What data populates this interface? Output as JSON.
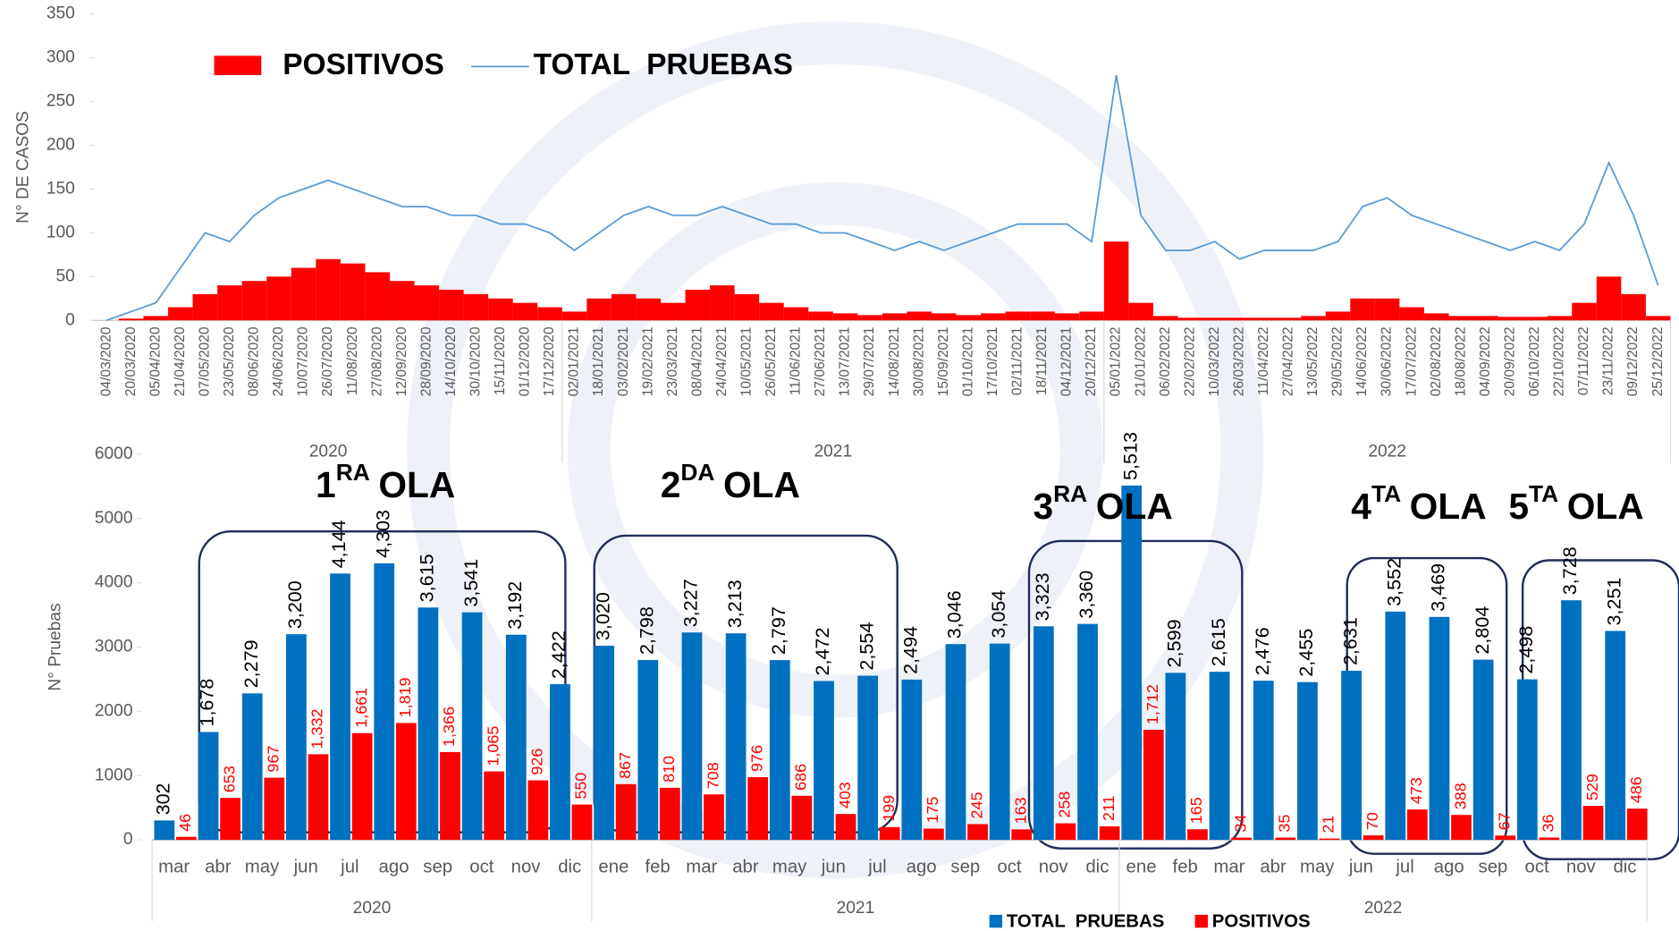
{
  "chart_data": [
    {
      "type": "daily",
      "ylabel": "N° DE CASOS",
      "ylim": [
        0,
        350
      ],
      "yticks": [
        0,
        50,
        100,
        150,
        200,
        250,
        300,
        350
      ],
      "x": [
        "04/03/2020",
        "20/03/2020",
        "05/04/2020",
        "21/04/2020",
        "07/05/2020",
        "23/05/2020",
        "08/06/2020",
        "24/06/2020",
        "10/07/2020",
        "26/07/2020",
        "11/08/2020",
        "27/08/2020",
        "12/09/2020",
        "28/09/2020",
        "14/10/2020",
        "30/10/2020",
        "15/11/2020",
        "01/12/2020",
        "17/12/2020",
        "02/01/2021",
        "18/01/2021",
        "03/02/2021",
        "19/02/2021",
        "23/03/2021",
        "08/04/2021",
        "24/04/2021",
        "10/05/2021",
        "26/05/2021",
        "11/06/2021",
        "27/06/2021",
        "13/07/2021",
        "29/07/2021",
        "14/08/2021",
        "30/08/2021",
        "15/09/2021",
        "01/10/2021",
        "17/10/2021",
        "02/11/2021",
        "18/11/2021",
        "04/12/2021",
        "20/12/2021",
        "05/01/2022",
        "21/01/2022",
        "06/02/2022",
        "22/02/2022",
        "10/03/2022",
        "26/03/2022",
        "11/04/2022",
        "27/04/2022",
        "13/05/2022",
        "29/05/2022",
        "14/06/2022",
        "30/06/2022",
        "17/07/2022",
        "02/08/2022",
        "18/08/2022",
        "04/09/2022",
        "20/09/2022",
        "06/10/2022",
        "22/10/2022",
        "07/11/2022",
        "23/11/2022",
        "09/12/2022",
        "25/12/2022"
      ],
      "year_labels": [
        "2020",
        "2021",
        "2022"
      ],
      "series": [
        {
          "name": "POSITIVOS",
          "color": "#ff0000",
          "values": [
            0,
            2,
            5,
            15,
            30,
            40,
            45,
            50,
            60,
            70,
            65,
            55,
            45,
            40,
            35,
            30,
            25,
            20,
            15,
            10,
            25,
            30,
            25,
            20,
            35,
            40,
            30,
            20,
            15,
            10,
            8,
            6,
            8,
            10,
            8,
            6,
            8,
            10,
            10,
            8,
            10,
            90,
            20,
            5,
            3,
            3,
            3,
            3,
            3,
            5,
            10,
            25,
            25,
            15,
            8,
            5,
            5,
            4,
            4,
            5,
            20,
            50,
            30,
            5
          ]
        },
        {
          "name": "TOTAL  PRUEBAS",
          "color": "#5b9bd5",
          "values": [
            0,
            10,
            20,
            60,
            100,
            90,
            120,
            140,
            150,
            160,
            150,
            140,
            130,
            130,
            120,
            120,
            110,
            110,
            100,
            80,
            100,
            120,
            130,
            120,
            120,
            130,
            120,
            110,
            110,
            100,
            100,
            90,
            80,
            90,
            80,
            90,
            100,
            110,
            110,
            110,
            90,
            280,
            120,
            80,
            80,
            90,
            70,
            80,
            80,
            80,
            90,
            130,
            140,
            120,
            110,
            100,
            90,
            80,
            90,
            80,
            110,
            180,
            120,
            40
          ]
        }
      ]
    },
    {
      "type": "bar",
      "ylabel": "N° Pruebas",
      "ylim": [
        0,
        6000
      ],
      "yticks": [
        0,
        1000,
        2000,
        3000,
        4000,
        5000,
        6000
      ],
      "categories": [
        "mar",
        "abr",
        "may",
        "jun",
        "jul",
        "ago",
        "sep",
        "oct",
        "nov",
        "dic",
        "ene",
        "feb",
        "mar",
        "abr",
        "may",
        "jun",
        "jul",
        "ago",
        "sep",
        "oct",
        "nov",
        "dic",
        "ene",
        "feb",
        "mar",
        "abr",
        "may",
        "jun",
        "jul",
        "ago",
        "sep",
        "oct",
        "nov",
        "dic"
      ],
      "year_labels": [
        "2020",
        "2021",
        "2022"
      ],
      "series": [
        {
          "name": "TOTAL  PRUEBAS",
          "color": "#0070c0",
          "values": [
            302,
            1678,
            2279,
            3200,
            4144,
            4303,
            3615,
            3541,
            3192,
            2422,
            3020,
            2798,
            3227,
            3213,
            2797,
            2472,
            2554,
            2494,
            3046,
            3054,
            3323,
            3360,
            5513,
            2599,
            2615,
            2476,
            2455,
            2631,
            3552,
            3469,
            2804,
            2498,
            3728,
            3251
          ],
          "value_labels": [
            "302",
            "1,678",
            "2,279",
            "3,200",
            "4,144",
            "4,303",
            "3,615",
            "3,541",
            "3,192",
            "2,422",
            "3,020",
            "2,798",
            "3,227",
            "3,213",
            "2,797",
            "2,472",
            "2,554",
            "2,494",
            "3,046",
            "3,054",
            "3,323",
            "3,360",
            "5,513",
            "2,599",
            "2,615",
            "2,476",
            "2,455",
            "2,631",
            "3,552",
            "3,469",
            "2,804",
            "2,498",
            "3,728",
            "3,251"
          ]
        },
        {
          "name": "POSITIVOS",
          "color": "#ff0000",
          "values": [
            46,
            653,
            967,
            1332,
            1661,
            1819,
            1366,
            1065,
            926,
            550,
            867,
            810,
            708,
            976,
            686,
            403,
            199,
            175,
            245,
            163,
            258,
            211,
            1712,
            165,
            34,
            35,
            21,
            70,
            473,
            388,
            67,
            36,
            529,
            486
          ],
          "value_labels": [
            "46",
            "653",
            "967",
            "1,332",
            "1,661",
            "1,819",
            "1,366",
            "1,065",
            "926",
            "550",
            "867",
            "810",
            "708",
            "976",
            "686",
            "403",
            "199",
            "175",
            "245",
            "163",
            "258",
            "211",
            "1,712",
            "165",
            "34",
            "35",
            "21",
            "70",
            "473",
            "388",
            "67",
            "36",
            "529",
            "486"
          ]
        }
      ],
      "annotations": [
        {
          "number": "1",
          "sup": "RA",
          "text": "OLA"
        },
        {
          "number": "2",
          "sup": "DA",
          "text": "OLA"
        },
        {
          "number": "3",
          "sup": "RA",
          "text": "OLA"
        },
        {
          "number": "4",
          "sup": "TA",
          "text": "OLA"
        },
        {
          "number": "5",
          "sup": "TA",
          "text": "OLA"
        }
      ]
    }
  ]
}
